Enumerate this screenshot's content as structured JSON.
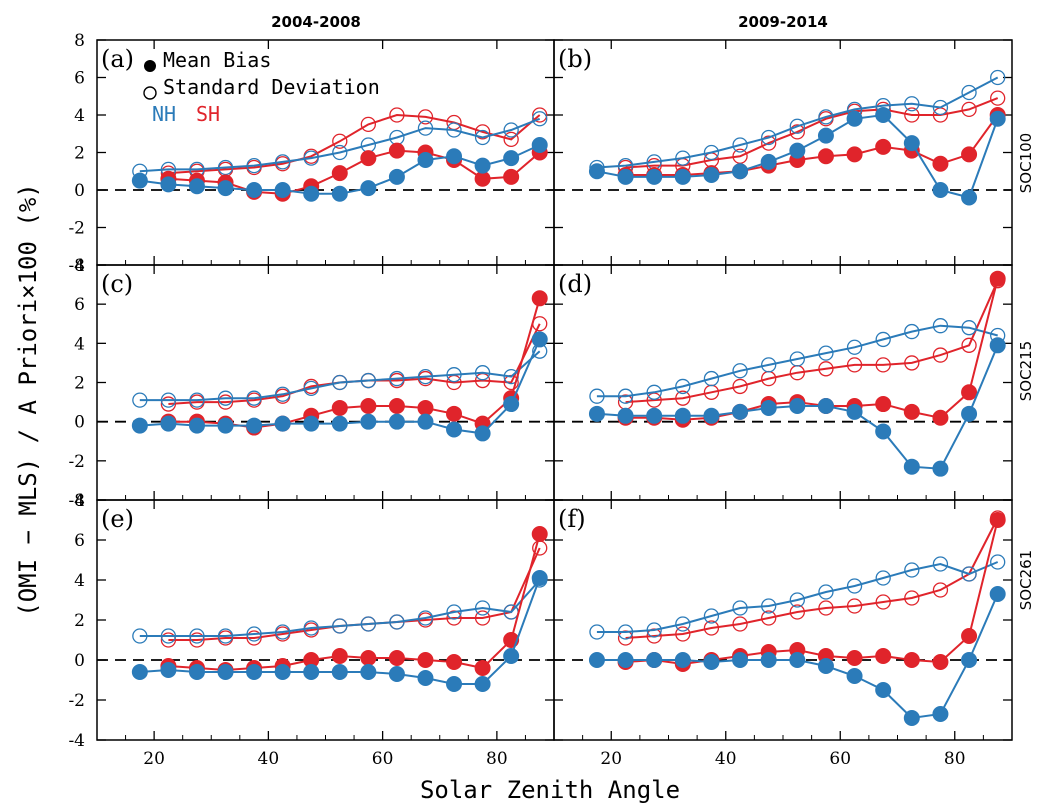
{
  "chart_data": {
    "type": "scatter",
    "column_titles": [
      "2004-2008",
      "2009-2014"
    ],
    "row_labels": [
      "SOC100",
      "SOC215",
      "SOC261"
    ],
    "xlabel": "Solar Zenith Angle",
    "ylabel": "(OMI − MLS) / A Priori×100 (%)",
    "xlim": [
      10,
      90
    ],
    "ylim": [
      -4,
      8
    ],
    "xticks": [
      20,
      40,
      60,
      80
    ],
    "yticks": [
      -4,
      -2,
      0,
      2,
      4,
      6,
      8
    ],
    "grid": false,
    "zero_line": "dashed",
    "legend": {
      "mean_bias": "Mean Bias",
      "std_dev": "Standard Deviation",
      "nh": "NH",
      "sh": "SH",
      "placement": "top-left of panel (a)"
    },
    "colors": {
      "NH": "#2b7bb9",
      "SH": "#e0242b"
    },
    "panels": [
      {
        "label": "(a)",
        "nh": {
          "x": [
            17.5,
            22.5,
            27.5,
            32.5,
            37.5,
            42.5,
            47.5,
            52.5,
            57.5,
            62.5,
            67.5,
            72.5,
            77.5,
            82.5,
            87.5
          ],
          "bias": [
            0.5,
            0.3,
            0.2,
            0.1,
            0.0,
            0.0,
            -0.2,
            -0.2,
            0.1,
            0.7,
            1.6,
            1.8,
            1.3,
            1.7,
            2.4
          ],
          "std": [
            1.0,
            1.1,
            1.1,
            1.2,
            1.3,
            1.5,
            1.7,
            2.0,
            2.4,
            2.8,
            3.3,
            3.2,
            2.8,
            3.2,
            3.8
          ]
        },
        "sh": {
          "x": [
            22.5,
            27.5,
            32.5,
            37.5,
            42.5,
            47.5,
            52.5,
            57.5,
            62.5,
            67.5,
            72.5,
            77.5,
            82.5,
            87.5
          ],
          "bias": [
            0.6,
            0.5,
            0.4,
            -0.1,
            -0.2,
            0.2,
            0.9,
            1.7,
            2.1,
            2.0,
            1.6,
            0.6,
            0.7,
            2.0
          ],
          "std": [
            0.9,
            1.0,
            1.1,
            1.2,
            1.4,
            1.8,
            2.6,
            3.5,
            4.0,
            3.9,
            3.6,
            3.1,
            2.7,
            4.0
          ]
        }
      },
      {
        "label": "(b)",
        "nh": {
          "x": [
            17.5,
            22.5,
            27.5,
            32.5,
            37.5,
            42.5,
            47.5,
            52.5,
            57.5,
            62.5,
            67.5,
            72.5,
            77.5,
            82.5,
            87.5
          ],
          "bias": [
            1.0,
            0.7,
            0.7,
            0.7,
            0.8,
            1.0,
            1.5,
            2.1,
            2.9,
            3.8,
            4.0,
            2.5,
            0.0,
            -0.4,
            3.8
          ],
          "std": [
            1.2,
            1.3,
            1.5,
            1.7,
            2.0,
            2.4,
            2.8,
            3.4,
            3.9,
            4.3,
            4.5,
            4.6,
            4.4,
            5.2,
            6.0
          ]
        },
        "sh": {
          "x": [
            22.5,
            27.5,
            32.5,
            37.5,
            42.5,
            47.5,
            52.5,
            57.5,
            62.5,
            67.5,
            72.5,
            77.5,
            82.5,
            87.5
          ],
          "bias": [
            0.8,
            0.8,
            0.8,
            0.9,
            1.0,
            1.3,
            1.6,
            1.8,
            1.9,
            2.3,
            2.1,
            1.4,
            1.9,
            4.0
          ],
          "std": [
            1.2,
            1.3,
            1.3,
            1.6,
            1.8,
            2.5,
            3.1,
            3.8,
            4.2,
            4.3,
            4.0,
            4.0,
            4.3,
            4.9
          ]
        }
      },
      {
        "label": "(c)",
        "nh": {
          "x": [
            17.5,
            22.5,
            27.5,
            32.5,
            37.5,
            42.5,
            47.5,
            52.5,
            57.5,
            62.5,
            67.5,
            72.5,
            77.5,
            82.5,
            87.5
          ],
          "bias": [
            -0.2,
            -0.1,
            -0.2,
            -0.2,
            -0.2,
            -0.1,
            -0.1,
            -0.1,
            0.0,
            0.0,
            0.0,
            -0.4,
            -0.6,
            0.9,
            4.2
          ],
          "std": [
            1.1,
            1.1,
            1.1,
            1.2,
            1.2,
            1.4,
            1.7,
            2.0,
            2.1,
            2.2,
            2.3,
            2.4,
            2.5,
            2.3,
            3.6
          ]
        },
        "sh": {
          "x": [
            22.5,
            27.5,
            32.5,
            37.5,
            42.5,
            47.5,
            52.5,
            57.5,
            62.5,
            67.5,
            72.5,
            77.5,
            82.5,
            87.5
          ],
          "bias": [
            0.0,
            0.0,
            -0.1,
            -0.3,
            -0.1,
            0.3,
            0.7,
            0.8,
            0.8,
            0.7,
            0.4,
            -0.1,
            1.2,
            6.3
          ],
          "std": [
            0.9,
            1.0,
            1.0,
            1.1,
            1.3,
            1.8,
            2.0,
            2.1,
            2.1,
            2.2,
            2.0,
            2.1,
            2.0,
            5.0
          ]
        }
      },
      {
        "label": "(d)",
        "nh": {
          "x": [
            17.5,
            22.5,
            27.5,
            32.5,
            37.5,
            42.5,
            47.5,
            52.5,
            57.5,
            62.5,
            67.5,
            72.5,
            77.5,
            82.5,
            87.5
          ],
          "bias": [
            0.4,
            0.3,
            0.3,
            0.3,
            0.3,
            0.5,
            0.7,
            0.8,
            0.8,
            0.5,
            -0.5,
            -2.3,
            -2.4,
            0.4,
            3.9
          ],
          "std": [
            1.3,
            1.3,
            1.5,
            1.8,
            2.2,
            2.6,
            2.9,
            3.2,
            3.5,
            3.8,
            4.2,
            4.6,
            4.9,
            4.8,
            4.4
          ]
        },
        "sh": {
          "x": [
            22.5,
            27.5,
            32.5,
            37.5,
            42.5,
            47.5,
            52.5,
            57.5,
            62.5,
            67.5,
            72.5,
            77.5,
            82.5,
            87.5
          ],
          "bias": [
            0.2,
            0.2,
            0.1,
            0.2,
            0.5,
            0.9,
            1.0,
            0.8,
            0.8,
            0.9,
            0.5,
            0.2,
            1.5,
            7.3
          ],
          "std": [
            1.0,
            1.1,
            1.2,
            1.5,
            1.8,
            2.2,
            2.5,
            2.7,
            2.9,
            2.9,
            3.0,
            3.4,
            3.9,
            7.2
          ]
        }
      },
      {
        "label": "(e)",
        "nh": {
          "x": [
            17.5,
            22.5,
            27.5,
            32.5,
            37.5,
            42.5,
            47.5,
            52.5,
            57.5,
            62.5,
            67.5,
            72.5,
            77.5,
            82.5,
            87.5
          ],
          "bias": [
            -0.6,
            -0.5,
            -0.6,
            -0.6,
            -0.6,
            -0.6,
            -0.6,
            -0.6,
            -0.6,
            -0.7,
            -0.9,
            -1.2,
            -1.2,
            0.2,
            4.1
          ],
          "std": [
            1.2,
            1.2,
            1.2,
            1.2,
            1.3,
            1.4,
            1.6,
            1.7,
            1.8,
            1.9,
            2.1,
            2.4,
            2.6,
            2.4,
            4.0
          ]
        },
        "sh": {
          "x": [
            22.5,
            27.5,
            32.5,
            37.5,
            42.5,
            47.5,
            52.5,
            57.5,
            62.5,
            67.5,
            72.5,
            77.5,
            82.5,
            87.5
          ],
          "bias": [
            -0.3,
            -0.4,
            -0.5,
            -0.4,
            -0.3,
            0.0,
            0.2,
            0.1,
            0.1,
            0.0,
            -0.1,
            -0.4,
            1.0,
            6.3
          ],
          "std": [
            1.0,
            1.0,
            1.1,
            1.1,
            1.3,
            1.5,
            1.7,
            1.8,
            1.9,
            2.0,
            2.1,
            2.1,
            2.4,
            5.6
          ]
        }
      },
      {
        "label": "(f)",
        "nh": {
          "x": [
            17.5,
            22.5,
            27.5,
            32.5,
            37.5,
            42.5,
            47.5,
            52.5,
            57.5,
            62.5,
            67.5,
            72.5,
            77.5,
            82.5,
            87.5
          ],
          "bias": [
            0.0,
            0.0,
            0.0,
            0.0,
            -0.1,
            0.0,
            0.0,
            0.0,
            -0.3,
            -0.8,
            -1.5,
            -2.9,
            -2.7,
            0.0,
            3.3
          ],
          "std": [
            1.4,
            1.4,
            1.5,
            1.8,
            2.2,
            2.6,
            2.7,
            3.0,
            3.4,
            3.7,
            4.1,
            4.5,
            4.8,
            4.3,
            4.9
          ]
        },
        "sh": {
          "x": [
            22.5,
            27.5,
            32.5,
            37.5,
            42.5,
            47.5,
            52.5,
            57.5,
            62.5,
            67.5,
            72.5,
            77.5,
            82.5,
            87.5
          ],
          "bias": [
            -0.1,
            0.0,
            -0.2,
            0.0,
            0.2,
            0.4,
            0.5,
            0.2,
            0.1,
            0.2,
            0.0,
            -0.1,
            1.2,
            7.0
          ],
          "std": [
            1.1,
            1.2,
            1.3,
            1.6,
            1.8,
            2.1,
            2.4,
            2.6,
            2.7,
            2.9,
            3.1,
            3.5,
            4.3,
            7.1
          ]
        }
      }
    ]
  }
}
